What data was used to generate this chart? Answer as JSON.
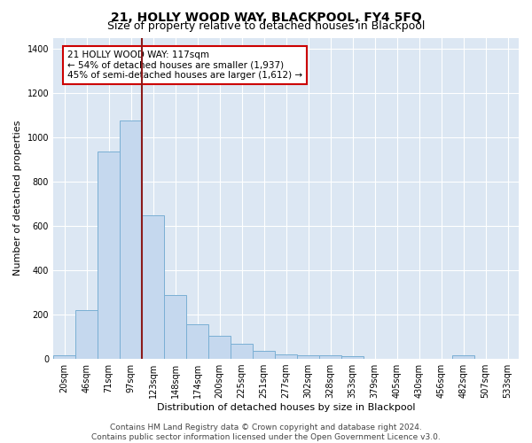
{
  "title": "21, HOLLY WOOD WAY, BLACKPOOL, FY4 5FQ",
  "subtitle": "Size of property relative to detached houses in Blackpool",
  "xlabel": "Distribution of detached houses by size in Blackpool",
  "ylabel": "Number of detached properties",
  "categories": [
    "20sqm",
    "46sqm",
    "71sqm",
    "97sqm",
    "123sqm",
    "148sqm",
    "174sqm",
    "200sqm",
    "225sqm",
    "251sqm",
    "277sqm",
    "302sqm",
    "328sqm",
    "353sqm",
    "379sqm",
    "405sqm",
    "430sqm",
    "456sqm",
    "482sqm",
    "507sqm",
    "533sqm"
  ],
  "values": [
    15,
    220,
    935,
    1075,
    650,
    290,
    155,
    105,
    68,
    35,
    22,
    18,
    15,
    12,
    0,
    0,
    0,
    0,
    15,
    0,
    0
  ],
  "bar_color": "#c5d8ee",
  "bar_edge_color": "#7aafd4",
  "vline_x_index": 4,
  "vline_color": "#8b1a1a",
  "annotation_text": "21 HOLLY WOOD WAY: 117sqm\n← 54% of detached houses are smaller (1,937)\n45% of semi-detached houses are larger (1,612) →",
  "annotation_box_facecolor": "white",
  "annotation_box_edgecolor": "#cc0000",
  "ylim": [
    0,
    1450
  ],
  "yticks": [
    0,
    200,
    400,
    600,
    800,
    1000,
    1200,
    1400
  ],
  "footer_line1": "Contains HM Land Registry data © Crown copyright and database right 2024.",
  "footer_line2": "Contains public sector information licensed under the Open Government Licence v3.0.",
  "plot_bg_color": "#dce7f3",
  "grid_color": "white",
  "title_fontsize": 10,
  "subtitle_fontsize": 9,
  "axis_label_fontsize": 8,
  "tick_fontsize": 7,
  "annotation_fontsize": 7.5,
  "footer_fontsize": 6.5
}
